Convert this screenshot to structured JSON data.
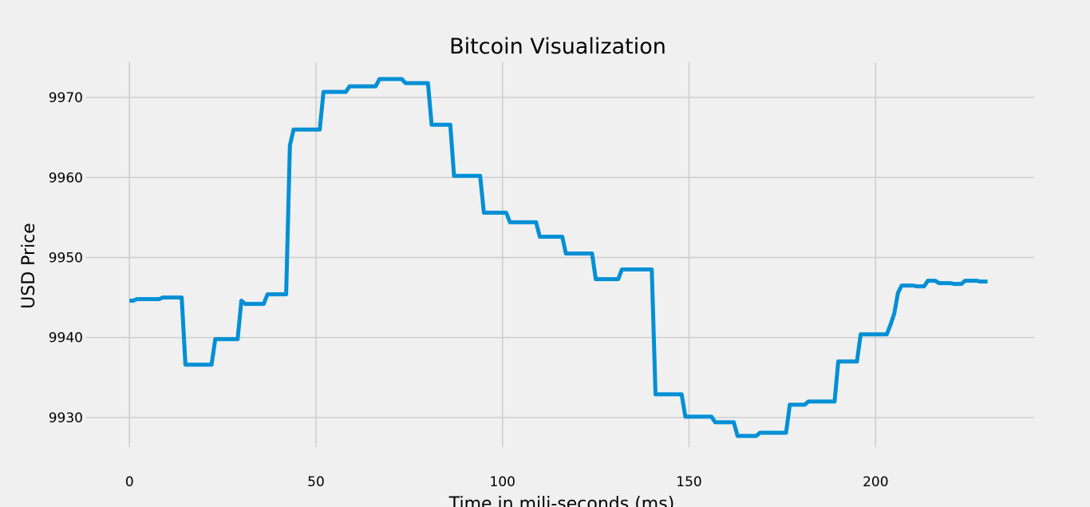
{
  "chart_data": {
    "type": "line",
    "title": "Bitcoin Visualization",
    "xlabel": "Time in mili-seconds (ms)",
    "ylabel": "USD Price",
    "xlim": [
      -11.6,
      242.5
    ],
    "ylim": [
      9926.3,
      9974.4
    ],
    "xticks": [
      0,
      50,
      100,
      150,
      200
    ],
    "yticks": [
      9930,
      9940,
      9950,
      9960,
      9970
    ],
    "grid": true,
    "legend": "none",
    "color": "#008fd5",
    "series": [
      {
        "points": [
          [
            0,
            9944.6
          ],
          [
            1,
            9944.6
          ],
          [
            2,
            9944.8
          ],
          [
            8,
            9944.8
          ],
          [
            9,
            9945.0
          ],
          [
            14,
            9945.0
          ],
          [
            15,
            9936.6
          ],
          [
            22,
            9936.6
          ],
          [
            23,
            9939.8
          ],
          [
            29,
            9939.8
          ],
          [
            30,
            9944.6
          ],
          [
            31,
            9944.2
          ],
          [
            36,
            9944.2
          ],
          [
            37,
            9945.4
          ],
          [
            42,
            9945.4
          ],
          [
            43,
            9964.0
          ],
          [
            44,
            9966.0
          ],
          [
            51,
            9966.0
          ],
          [
            52,
            9970.7
          ],
          [
            58,
            9970.7
          ],
          [
            59,
            9971.4
          ],
          [
            66,
            9971.4
          ],
          [
            67,
            9972.3
          ],
          [
            73,
            9972.3
          ],
          [
            74,
            9971.8
          ],
          [
            80,
            9971.8
          ],
          [
            81,
            9966.6
          ],
          [
            86,
            9966.6
          ],
          [
            87,
            9960.2
          ],
          [
            94,
            9960.2
          ],
          [
            95,
            9955.6
          ],
          [
            101,
            9955.6
          ],
          [
            102,
            9954.4
          ],
          [
            109,
            9954.4
          ],
          [
            110,
            9952.6
          ],
          [
            116,
            9952.6
          ],
          [
            117,
            9950.5
          ],
          [
            124,
            9950.5
          ],
          [
            125,
            9947.3
          ],
          [
            131,
            9947.3
          ],
          [
            132,
            9948.5
          ],
          [
            140,
            9948.5
          ],
          [
            141,
            9932.9
          ],
          [
            148,
            9932.9
          ],
          [
            149,
            9930.1
          ],
          [
            156,
            9930.1
          ],
          [
            157,
            9929.4
          ],
          [
            162,
            9929.4
          ],
          [
            163,
            9927.7
          ],
          [
            168,
            9927.7
          ],
          [
            169,
            9928.1
          ],
          [
            176,
            9928.1
          ],
          [
            177,
            9931.6
          ],
          [
            181,
            9931.6
          ],
          [
            182,
            9932.0
          ],
          [
            189,
            9932.0
          ],
          [
            190,
            9937.0
          ],
          [
            195,
            9937.0
          ],
          [
            196,
            9940.4
          ],
          [
            203,
            9940.4
          ],
          [
            204,
            9941.6
          ],
          [
            205,
            9943.0
          ],
          [
            206,
            9945.6
          ],
          [
            207,
            9946.5
          ],
          [
            210,
            9946.5
          ],
          [
            211,
            9946.4
          ],
          [
            213,
            9946.4
          ],
          [
            214,
            9947.1
          ],
          [
            216,
            9947.1
          ],
          [
            217,
            9946.8
          ],
          [
            220,
            9946.8
          ],
          [
            221,
            9946.7
          ],
          [
            223,
            9946.7
          ],
          [
            224,
            9947.1
          ],
          [
            227,
            9947.1
          ],
          [
            228,
            9947.0
          ],
          [
            230,
            9947.0
          ]
        ]
      }
    ]
  }
}
